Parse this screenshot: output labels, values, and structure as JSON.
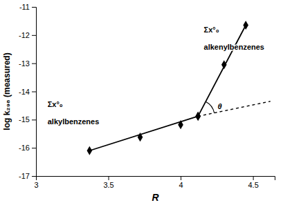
{
  "chart_data": {
    "type": "line",
    "xlabel": "R",
    "ylabel": "log k₂₉₈ (measured)",
    "xlim": [
      3.0,
      4.65
    ],
    "ylim": [
      -17,
      -11
    ],
    "xticks": [
      3,
      3.5,
      4,
      4.5
    ],
    "yticks": [
      -17,
      -16,
      -15,
      -14,
      -13,
      -12,
      -11
    ],
    "grid": false,
    "series": [
      {
        "type": "line",
        "line_style": "solid",
        "color": "#000000",
        "x": [
          3.37,
          4.12
        ],
        "values": [
          -16.1,
          -14.88
        ]
      },
      {
        "type": "scatter",
        "marker": "diamond",
        "color": "#000000",
        "x": [
          3.37,
          3.72,
          4.0,
          4.12
        ],
        "values": [
          -16.1,
          -15.62,
          -15.18,
          -14.88
        ]
      },
      {
        "type": "line",
        "line_style": "solid",
        "color": "#000000",
        "x": [
          4.12,
          4.45
        ],
        "values": [
          -14.88,
          -11.65
        ]
      },
      {
        "type": "scatter",
        "marker": "diamond",
        "color": "#000000",
        "x": [
          4.12,
          4.3,
          4.45
        ],
        "values": [
          -14.88,
          -13.05,
          -11.65
        ]
      },
      {
        "type": "line",
        "line_style": "dashed",
        "color": "#000000",
        "x": [
          4.12,
          4.62
        ],
        "values": [
          -14.88,
          -14.35
        ]
      }
    ],
    "annotations": [
      {
        "text": "Σx°₀",
        "x": 3.08,
        "y": -14.45
      },
      {
        "text": "alkylbenzenes",
        "x": 3.08,
        "y": -15.07
      },
      {
        "text": "Σx°₀",
        "x": 4.16,
        "y": -11.8
      },
      {
        "text": "alkenylbenzenes",
        "x": 4.16,
        "y": -12.43
      },
      {
        "text": "θ",
        "x": 4.255,
        "y": -14.52
      }
    ]
  }
}
